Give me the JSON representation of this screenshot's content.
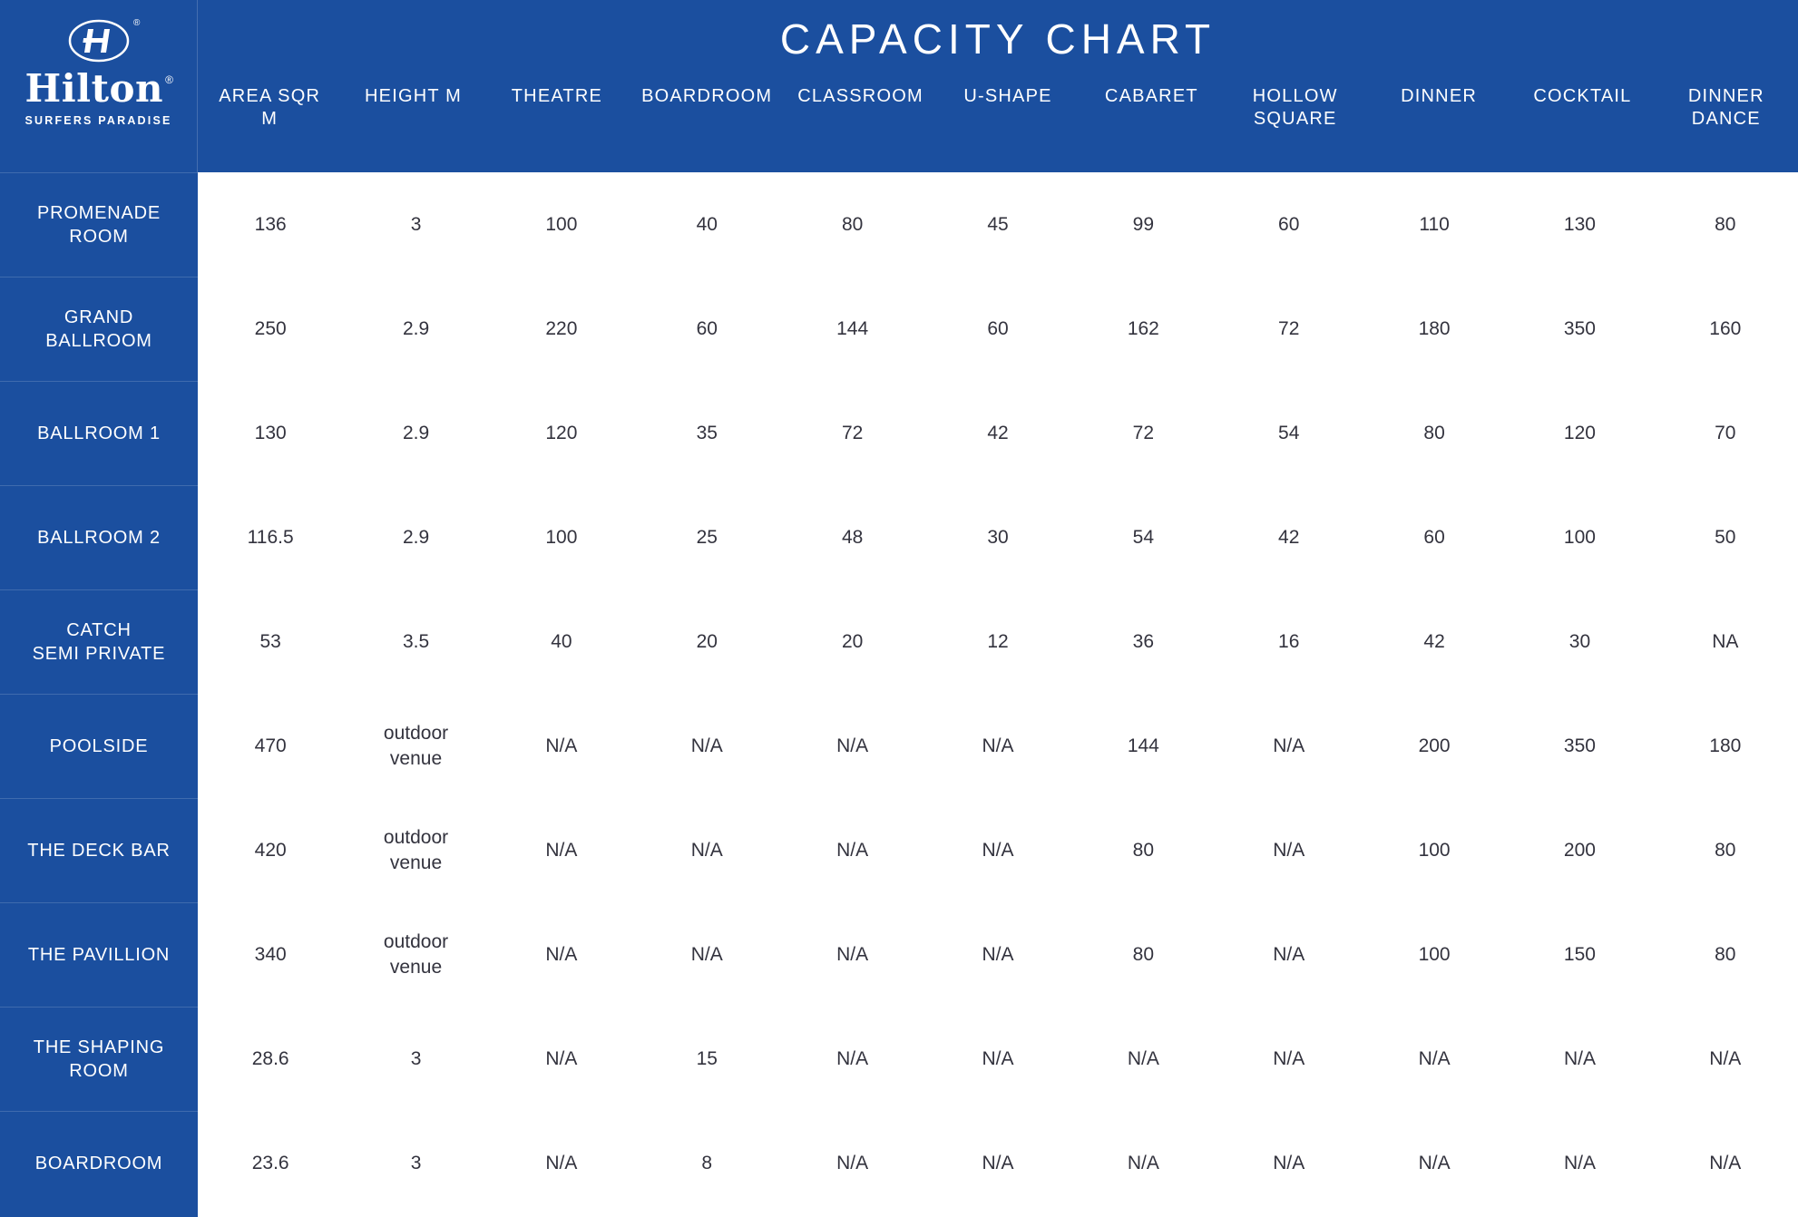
{
  "brand": {
    "name": "Hilton",
    "registered": "®",
    "subtitle": "SURFERS PARADISE"
  },
  "colors": {
    "primary_blue": "#1B4F9F",
    "text_dark": "#33333E",
    "white": "#FFFFFF"
  },
  "chart_data": {
    "type": "table",
    "title": "CAPACITY CHART",
    "legend_position": "none",
    "grid": false,
    "columns": [
      "AREA SQR M",
      "HEIGHT M",
      "THEATRE",
      "BOARDROOM",
      "CLASSROOM",
      "U-SHAPE",
      "CABARET",
      "HOLLOW SQUARE",
      "DINNER",
      "COCKTAIL",
      "DINNER DANCE"
    ],
    "rows": [
      {
        "label": "PROMENADE\nROOM",
        "values": [
          "136",
          "3",
          "100",
          "40",
          "80",
          "45",
          "99",
          "60",
          "110",
          "130",
          "80"
        ]
      },
      {
        "label": "GRAND\nBALLROOM",
        "values": [
          "250",
          "2.9",
          "220",
          "60",
          "144",
          "60",
          "162",
          "72",
          "180",
          "350",
          "160"
        ]
      },
      {
        "label": "BALLROOM 1",
        "values": [
          "130",
          "2.9",
          "120",
          "35",
          "72",
          "42",
          "72",
          "54",
          "80",
          "120",
          "70"
        ]
      },
      {
        "label": "BALLROOM 2",
        "values": [
          "116.5",
          "2.9",
          "100",
          "25",
          "48",
          "30",
          "54",
          "42",
          "60",
          "100",
          "50"
        ]
      },
      {
        "label": "CATCH\nSEMI PRIVATE",
        "values": [
          "53",
          "3.5",
          "40",
          "20",
          "20",
          "12",
          "36",
          "16",
          "42",
          "30",
          "NA"
        ]
      },
      {
        "label": "POOLSIDE",
        "values": [
          "470",
          "outdoor venue",
          "N/A",
          "N/A",
          "N/A",
          "N/A",
          "144",
          "N/A",
          "200",
          "350",
          "180"
        ]
      },
      {
        "label": "THE DECK BAR",
        "values": [
          "420",
          "outdoor venue",
          "N/A",
          "N/A",
          "N/A",
          "N/A",
          "80",
          "N/A",
          "100",
          "200",
          "80"
        ]
      },
      {
        "label": "THE PAVILLION",
        "values": [
          "340",
          "outdoor venue",
          "N/A",
          "N/A",
          "N/A",
          "N/A",
          "80",
          "N/A",
          "100",
          "150",
          "80"
        ]
      },
      {
        "label": "THE SHAPING\nROOM",
        "values": [
          "28.6",
          "3",
          "N/A",
          "15",
          "N/A",
          "N/A",
          "N/A",
          "N/A",
          "N/A",
          "N/A",
          "N/A"
        ]
      },
      {
        "label": "BOARDROOM",
        "values": [
          "23.6",
          "3",
          "N/A",
          "8",
          "N/A",
          "N/A",
          "N/A",
          "N/A",
          "N/A",
          "N/A",
          "N/A"
        ]
      }
    ]
  }
}
